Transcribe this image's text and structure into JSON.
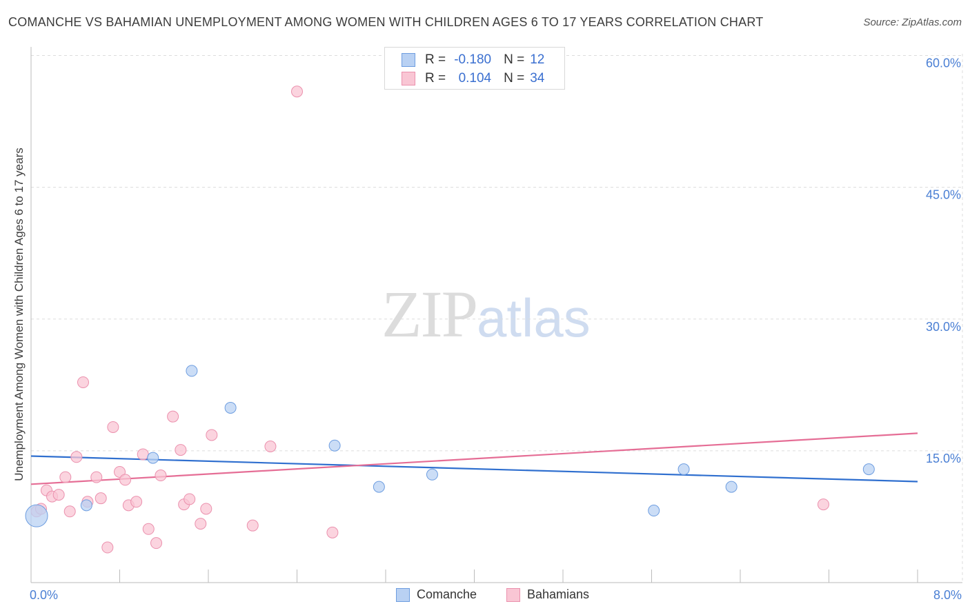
{
  "header": {
    "title": "COMANCHE VS BAHAMIAN UNEMPLOYMENT AMONG WOMEN WITH CHILDREN AGES 6 TO 17 YEARS CORRELATION CHART",
    "source": "Source: ZipAtlas.com"
  },
  "watermark": {
    "zip": "ZIP",
    "atlas": "atlas"
  },
  "legend": {
    "comanche": {
      "r_label": "R =",
      "r_value": "-0.180",
      "n_label": "N =",
      "n_value": "12"
    },
    "bahamians": {
      "r_label": "R =",
      "r_value": "0.104",
      "n_label": "N =",
      "n_value": "34"
    }
  },
  "bottom_legend": {
    "comanche": "Comanche",
    "bahamians": "Bahamians"
  },
  "colors": {
    "comanche_fill": "#b9d1f3",
    "comanche_stroke": "#6d9de0",
    "comanche_line": "#2f6fcf",
    "bahamians_fill": "#f9c6d4",
    "bahamians_stroke": "#eb90ad",
    "bahamians_line": "#e56d95",
    "grid": "#dcdcdc",
    "tick_label": "#4a7fd4"
  },
  "chart_data": {
    "type": "scatter",
    "title": "COMANCHE VS BAHAMIAN UNEMPLOYMENT AMONG WOMEN WITH CHILDREN AGES 6 TO 17 YEARS CORRELATION CHART",
    "xlabel": "",
    "ylabel": "Unemployment Among Women with Children Ages 6 to 17 years",
    "xlim": [
      0,
      8
    ],
    "ylim": [
      0,
      60
    ],
    "x_tick_labels": [
      "0.0%",
      "8.0%"
    ],
    "y_ticks": [
      15,
      30,
      45,
      60
    ],
    "y_tick_labels": [
      "15.0%",
      "30.0%",
      "45.0%",
      "60.0%"
    ],
    "legend_position": "top-center",
    "series": [
      {
        "name": "Comanche",
        "points": [
          {
            "x": 0.05,
            "y": 7.6,
            "big": true
          },
          {
            "x": 0.5,
            "y": 8.8
          },
          {
            "x": 1.1,
            "y": 14.2
          },
          {
            "x": 1.45,
            "y": 24.1
          },
          {
            "x": 1.8,
            "y": 19.9
          },
          {
            "x": 2.74,
            "y": 15.6
          },
          {
            "x": 3.14,
            "y": 10.9
          },
          {
            "x": 3.62,
            "y": 12.3
          },
          {
            "x": 5.62,
            "y": 8.2
          },
          {
            "x": 5.89,
            "y": 12.9
          },
          {
            "x": 6.32,
            "y": 10.9
          },
          {
            "x": 7.56,
            "y": 12.9
          }
        ],
        "trend": {
          "x": [
            0,
            8
          ],
          "y": [
            14.4,
            11.5
          ]
        }
      },
      {
        "name": "Bahamians",
        "points": [
          {
            "x": 0.05,
            "y": 8.1
          },
          {
            "x": 0.09,
            "y": 8.4
          },
          {
            "x": 0.14,
            "y": 10.5
          },
          {
            "x": 0.19,
            "y": 9.8
          },
          {
            "x": 0.25,
            "y": 10.0
          },
          {
            "x": 0.31,
            "y": 12.0
          },
          {
            "x": 0.35,
            "y": 8.1
          },
          {
            "x": 0.41,
            "y": 14.3
          },
          {
            "x": 0.47,
            "y": 22.8
          },
          {
            "x": 0.51,
            "y": 9.2
          },
          {
            "x": 0.59,
            "y": 12.0
          },
          {
            "x": 0.63,
            "y": 9.6
          },
          {
            "x": 0.69,
            "y": 4.0
          },
          {
            "x": 0.74,
            "y": 17.7
          },
          {
            "x": 0.8,
            "y": 12.6
          },
          {
            "x": 0.85,
            "y": 11.7
          },
          {
            "x": 0.88,
            "y": 8.8
          },
          {
            "x": 0.95,
            "y": 9.2
          },
          {
            "x": 1.01,
            "y": 14.6
          },
          {
            "x": 1.06,
            "y": 6.1
          },
          {
            "x": 1.13,
            "y": 4.5
          },
          {
            "x": 1.17,
            "y": 12.2
          },
          {
            "x": 1.28,
            "y": 18.9
          },
          {
            "x": 1.35,
            "y": 15.1
          },
          {
            "x": 1.38,
            "y": 8.9
          },
          {
            "x": 1.43,
            "y": 9.5
          },
          {
            "x": 1.53,
            "y": 6.7
          },
          {
            "x": 1.58,
            "y": 8.4
          },
          {
            "x": 1.63,
            "y": 16.8
          },
          {
            "x": 2.0,
            "y": 6.5
          },
          {
            "x": 2.16,
            "y": 15.5
          },
          {
            "x": 2.4,
            "y": 55.9
          },
          {
            "x": 2.72,
            "y": 5.7
          },
          {
            "x": 7.15,
            "y": 8.9
          }
        ],
        "trend": {
          "x": [
            0,
            8
          ],
          "y": [
            11.2,
            17.0
          ]
        }
      }
    ]
  }
}
